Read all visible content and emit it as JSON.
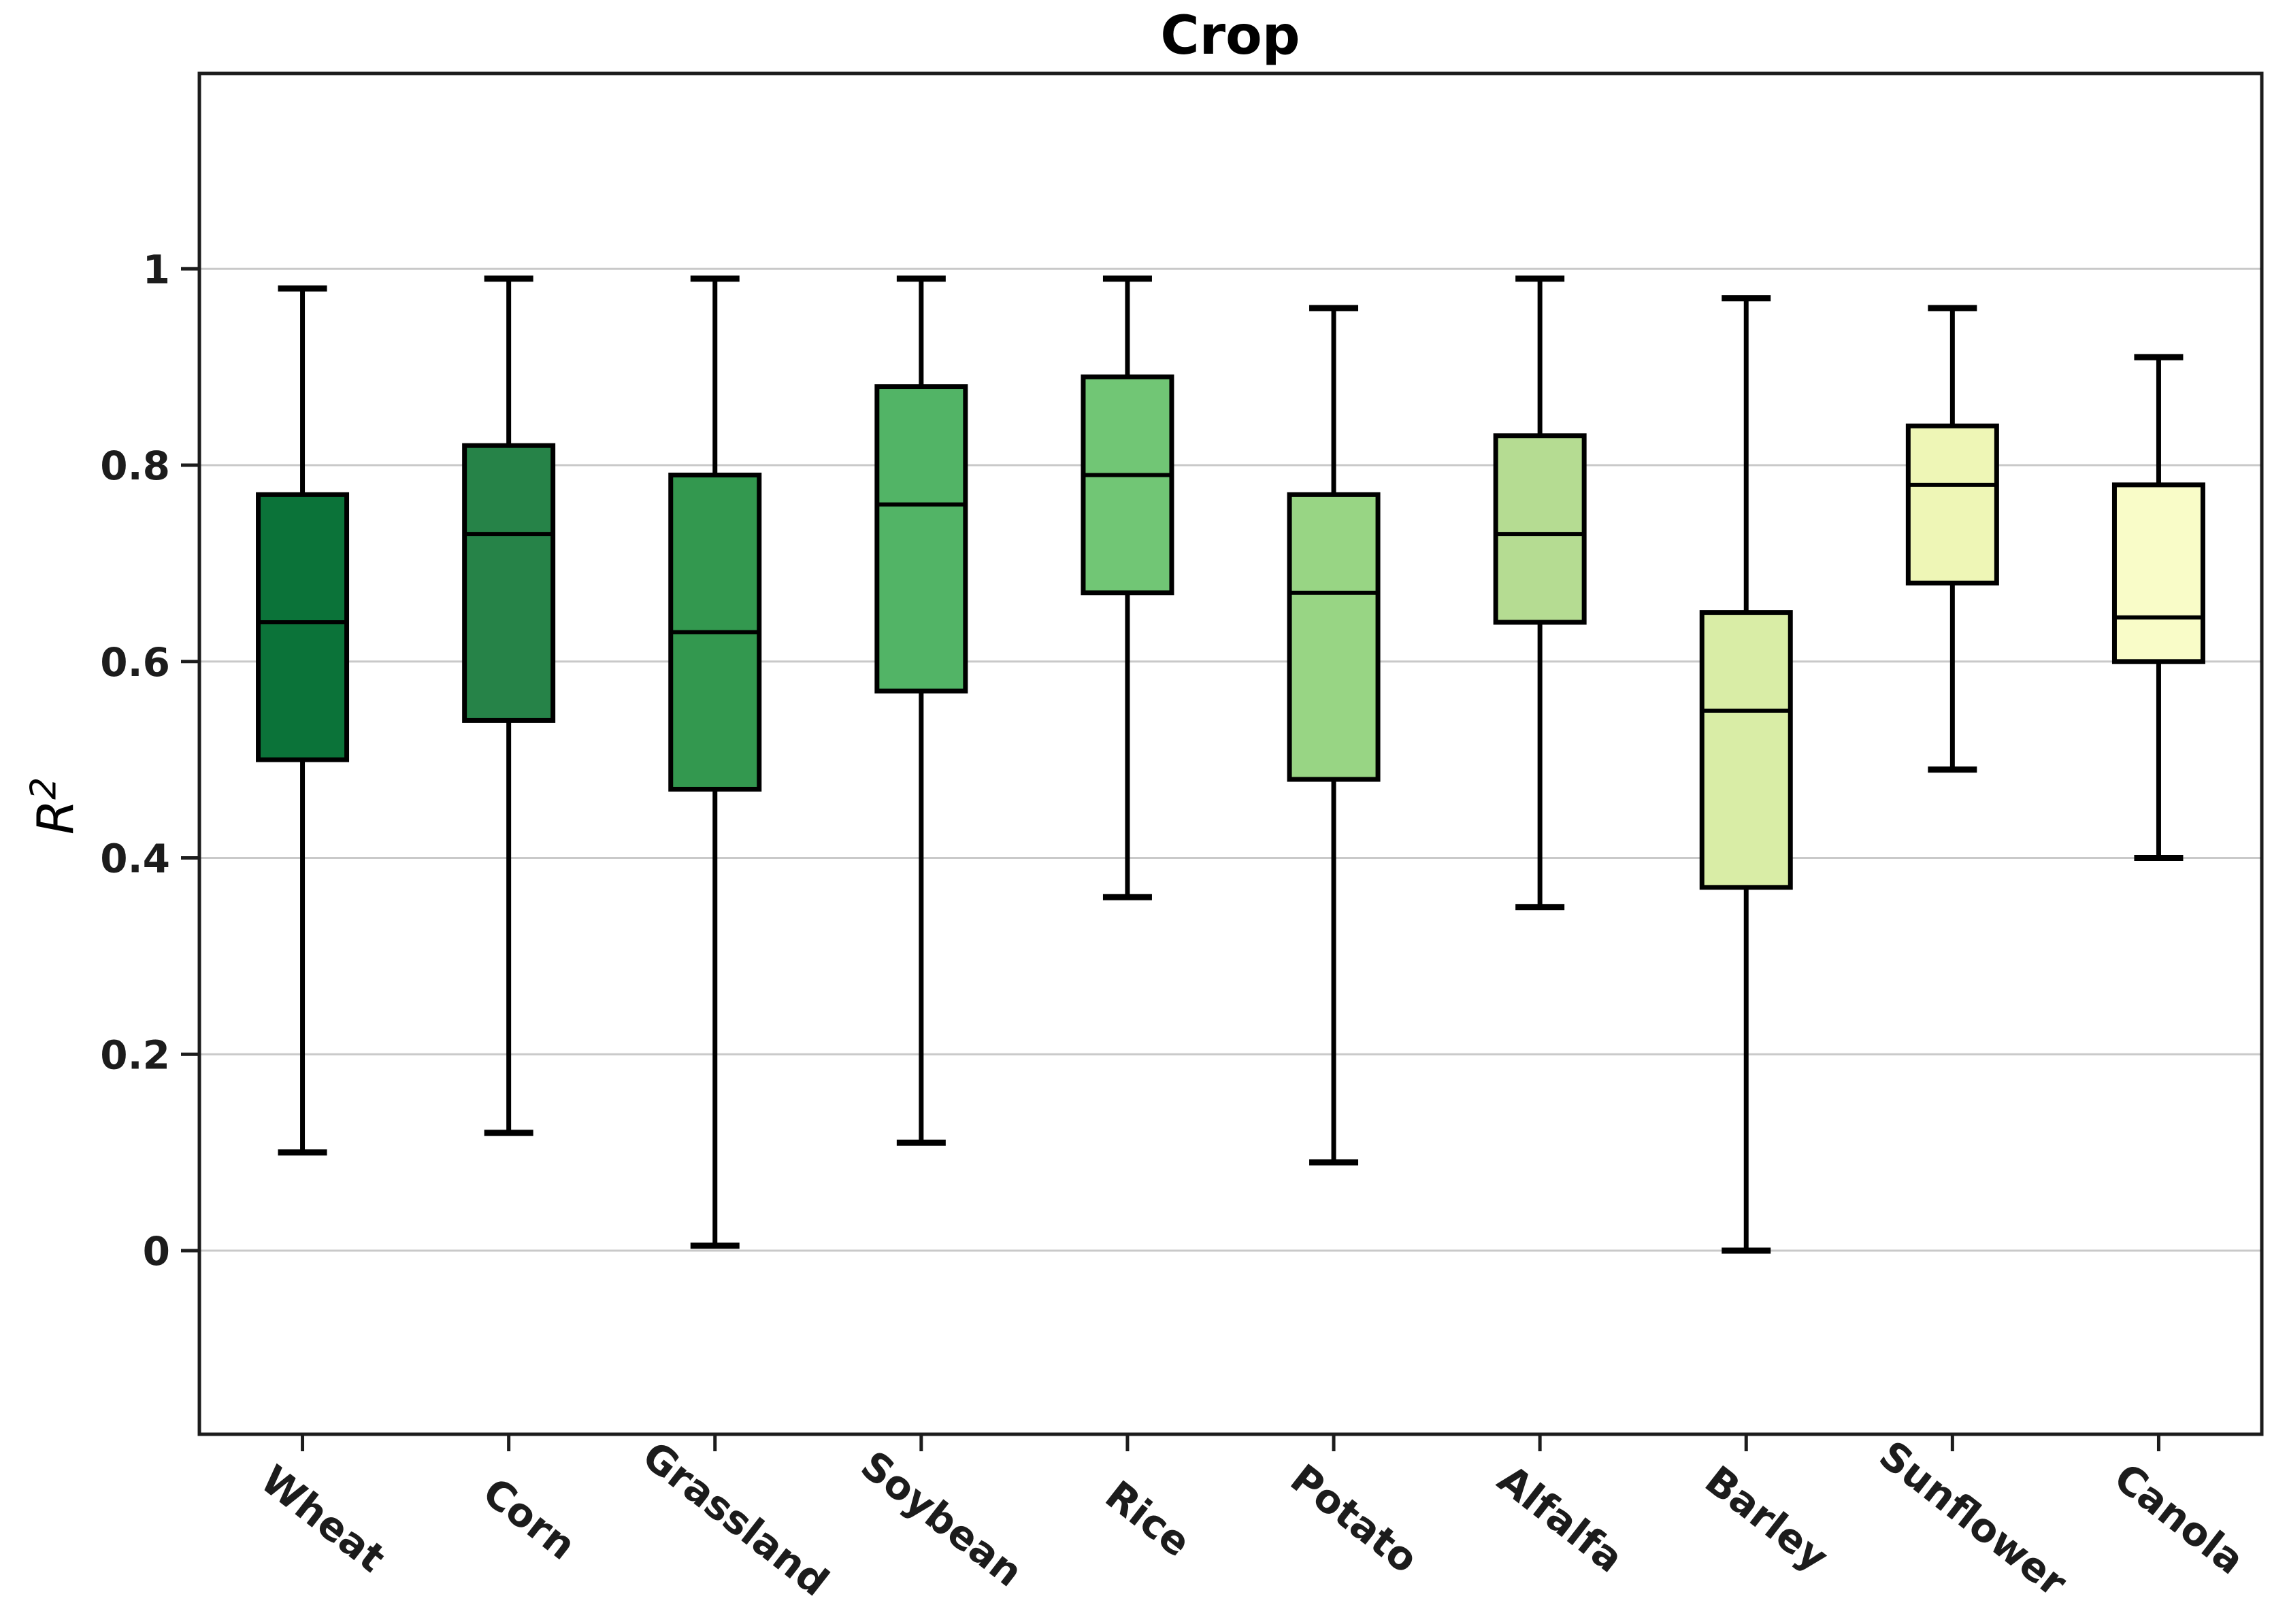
{
  "title": "Crop",
  "y_axis_label": {
    "base": "R",
    "superscript": "2"
  },
  "chart_data": {
    "type": "box",
    "title": "Crop",
    "ylabel": "R^2",
    "xlabel": "",
    "categories": [
      "Wheat",
      "Corn",
      "Grassland",
      "Soybean",
      "Rice",
      "Potato",
      "Alfalfa",
      "Barley",
      "Sunflower",
      "Canola"
    ],
    "series": [
      {
        "name": "Wheat",
        "whislo": 0.1,
        "q1": 0.5,
        "med": 0.64,
        "q3": 0.77,
        "whishi": 0.98,
        "fill": "#0b7339"
      },
      {
        "name": "Corn",
        "whislo": 0.12,
        "q1": 0.54,
        "med": 0.73,
        "q3": 0.82,
        "whishi": 0.99,
        "fill": "#268348"
      },
      {
        "name": "Grassland",
        "whislo": 0.005,
        "q1": 0.47,
        "med": 0.63,
        "q3": 0.79,
        "whishi": 0.99,
        "fill": "#33984f"
      },
      {
        "name": "Soybean",
        "whislo": 0.11,
        "q1": 0.57,
        "med": 0.76,
        "q3": 0.88,
        "whishi": 0.99,
        "fill": "#52b466"
      },
      {
        "name": "Rice",
        "whislo": 0.36,
        "q1": 0.67,
        "med": 0.79,
        "q3": 0.89,
        "whishi": 0.99,
        "fill": "#71c675"
      },
      {
        "name": "Potato",
        "whislo": 0.09,
        "q1": 0.48,
        "med": 0.67,
        "q3": 0.77,
        "whishi": 0.96,
        "fill": "#98d584"
      },
      {
        "name": "Alfalfa",
        "whislo": 0.35,
        "q1": 0.64,
        "med": 0.73,
        "q3": 0.83,
        "whishi": 0.99,
        "fill": "#b5dc92"
      },
      {
        "name": "Barley",
        "whislo": 0.0,
        "q1": 0.37,
        "med": 0.55,
        "q3": 0.65,
        "whishi": 0.97,
        "fill": "#d9eda6"
      },
      {
        "name": "Sunflower",
        "whislo": 0.49,
        "q1": 0.68,
        "med": 0.78,
        "q3": 0.84,
        "whishi": 0.96,
        "fill": "#eef6b6"
      },
      {
        "name": "Canola",
        "whislo": 0.4,
        "q1": 0.6,
        "med": 0.645,
        "q3": 0.78,
        "whishi": 0.91,
        "fill": "#f9fcc8"
      }
    ],
    "yticks": [
      {
        "label": "1",
        "value": 1.0
      },
      {
        "label": "0.8",
        "value": 0.8
      },
      {
        "label": "0.6",
        "value": 0.6
      },
      {
        "label": "0.4",
        "value": 0.4
      },
      {
        "label": "0.2",
        "value": 0.2
      },
      {
        "label": "0",
        "value": 0.0
      }
    ],
    "ylim": [
      -0.187,
      1.199
    ],
    "grid": true,
    "grid_values": [
      0.0,
      0.2,
      0.4,
      0.6,
      0.8,
      1.0
    ],
    "legend": false
  },
  "style": {
    "background": "#ffffff",
    "box_edge_color": "#000000",
    "median_color": "#000000",
    "whisker_color": "#000000",
    "grid_color": "#c9c9c9",
    "spine_color": "#1c1c1c",
    "tick_label_color": "#1c1c1c",
    "title_color": "#000000"
  }
}
